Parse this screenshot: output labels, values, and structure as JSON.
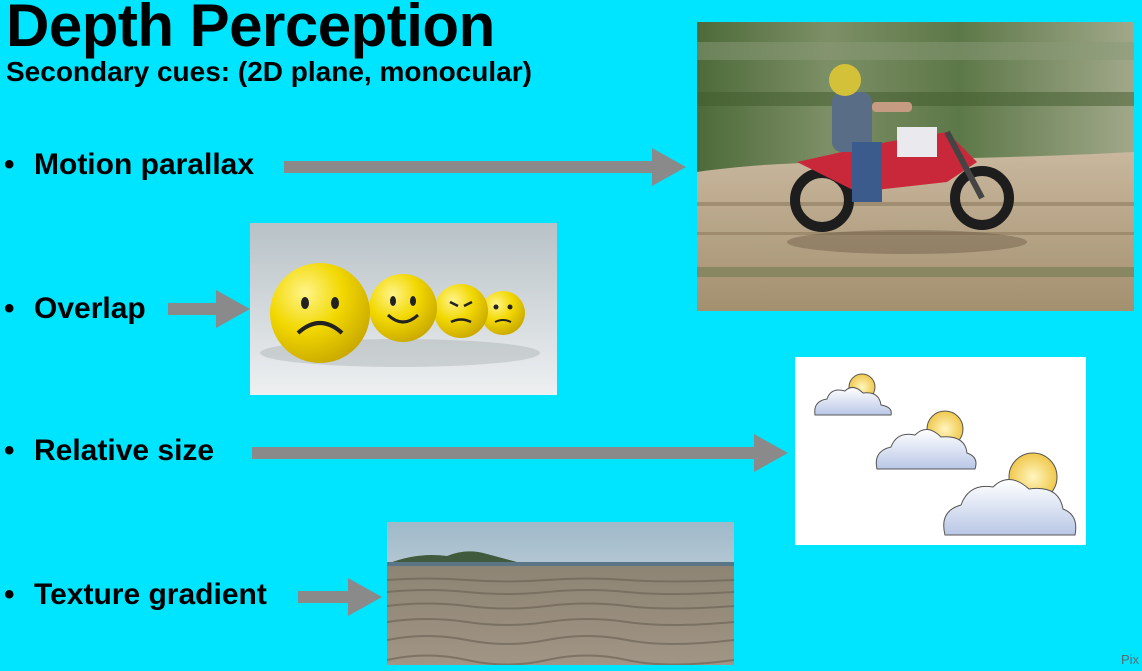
{
  "slide": {
    "title": "Depth Perception",
    "subtitle": "Secondary cues: (2D plane, monocular)",
    "bullet_char": "•",
    "items": [
      {
        "label": "Motion parallax"
      },
      {
        "label": "Overlap"
      },
      {
        "label": "Relative size"
      },
      {
        "label": "Texture gradient"
      }
    ],
    "credit": "Pix"
  },
  "colors": {
    "background": "#00e5ff",
    "arrow": "#8a8a8a",
    "text": "#000000"
  },
  "images": {
    "motorcycle": "motocross-rider-photo",
    "emoji_balls": "emoji-balls-photo",
    "clouds": "sun-cloud-icons-illustration",
    "beach": "sandy-beach-photo"
  }
}
